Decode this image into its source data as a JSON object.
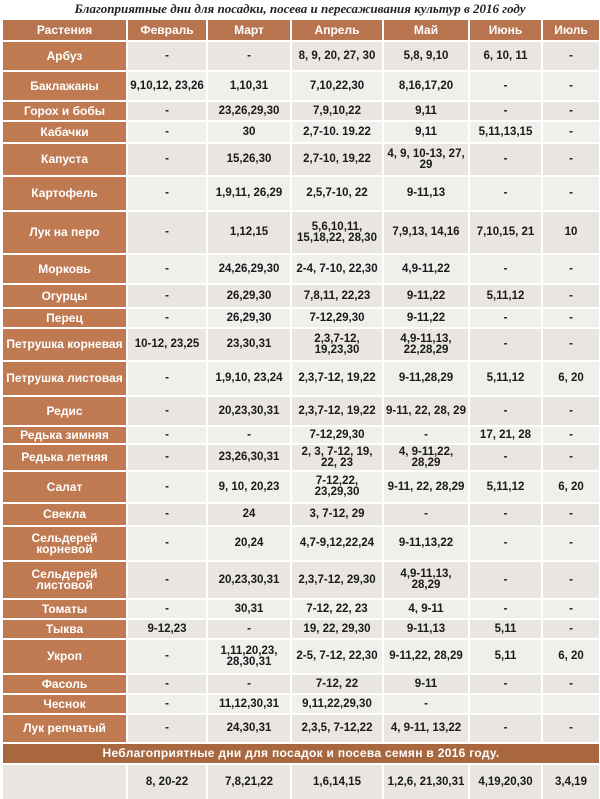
{
  "title": "Благоприятные дни для посадки, посева и пересаживания культур в 2016 году",
  "table": {
    "header": [
      "Растения",
      "Февраль",
      "Март",
      "Апрель",
      "Май",
      "Июнь",
      "Июль"
    ],
    "rows": [
      [
        "Арбуз",
        "-",
        "-",
        "8, 9, 20, 27, 30",
        "5,8, 9,10",
        "6, 10, 11",
        "-"
      ],
      [
        "Баклажаны",
        "9,10,12, 23,26",
        "1,10,31",
        "7,10,22,30",
        "8,16,17,20",
        "-",
        "-"
      ],
      [
        "Горох и бобы",
        "-",
        "23,26,29,30",
        "7,9,10,22",
        "9,11",
        "-",
        "-"
      ],
      [
        "Кабачки",
        "-",
        "30",
        "2,7-10. 19.22",
        "9,11",
        "5,11,13,15",
        "-"
      ],
      [
        "Капуста",
        "-",
        "15,26,30",
        "2,7-10, 19,22",
        "4, 9, 10-13, 27, 29",
        "-",
        "-"
      ],
      [
        "Картофель",
        "-",
        "1,9,11, 26,29",
        "2,5,7-10, 22",
        "9-11,13",
        "-",
        "-"
      ],
      [
        "Лук на перо",
        "-",
        "1,12,15",
        "5,6,10,11, 15,18,22, 28,30",
        "7,9,13, 14,16",
        "7,10,15, 21",
        "10"
      ],
      [
        "Морковь",
        "-",
        "24,26,29,30",
        "2-4, 7-10, 22,30",
        "4,9-11,22",
        "-",
        "-"
      ],
      [
        "Огурцы",
        "-",
        "26,29,30",
        "7,8,11, 22,23",
        "9-11,22",
        "5,11,12",
        "-"
      ],
      [
        "Перец",
        "-",
        "26,29,30",
        "7-12,29,30",
        "9-11,22",
        "-",
        "-"
      ],
      [
        "Петрушка корневая",
        "10-12, 23,25",
        "23,30,31",
        "2,3,7-12, 19,23,30",
        "4,9-11,13, 22,28,29",
        "-",
        "-"
      ],
      [
        "Петрушка листовая",
        "-",
        "1,9,10, 23,24",
        "2,3,7-12, 19,22",
        "9-11,28,29",
        "5,11,12",
        "6, 20"
      ],
      [
        "Редис",
        "-",
        "20,23,30,31",
        "2,3,7-12, 19,22",
        "9-11, 22, 28, 29",
        "-",
        "-"
      ],
      [
        "Редька зимняя",
        "-",
        "-",
        "7-12,29,30",
        "-",
        "17, 21, 28",
        "-"
      ],
      [
        "Редька летняя",
        "-",
        "23,26,30,31",
        "2, 3, 7-12, 19, 22, 23",
        "4, 9-11,22, 28,29",
        "-",
        "-"
      ],
      [
        "Салат",
        "-",
        "9, 10, 20,23",
        "7-12,22, 23,29,30",
        "9-11, 22, 28,29",
        "5,11,12",
        "6, 20"
      ],
      [
        "Свекла",
        "-",
        "24",
        "3, 7-12, 29",
        "-",
        "-",
        "-"
      ],
      [
        "Сельдерей корневой",
        "-",
        "20,24",
        "4,7-9,12,22,24",
        "9-11,13,22",
        "-",
        "-"
      ],
      [
        "Сельдерей листовой",
        "-",
        "20,23,30,31",
        "2,3,7-12, 29,30",
        "4,9-11,13, 28,29",
        "-",
        "-"
      ],
      [
        "Томаты",
        "-",
        "30,31",
        "7-12, 22, 23",
        "4, 9-11",
        "-",
        "-"
      ],
      [
        "Тыква",
        "9-12,23",
        "-",
        "19, 22, 29,30",
        "9-11,13",
        "5,11",
        "-"
      ],
      [
        "Укроп",
        "-",
        "1,11,20,23, 28,30,31",
        "2-5, 7-12, 22,30",
        "9-11,22, 28,29",
        "5,11",
        "6, 20"
      ],
      [
        "Фасоль",
        "-",
        "-",
        "7-12, 22",
        "9-11",
        "-",
        "-"
      ],
      [
        "Чеснок",
        "-",
        "11,12,30,31",
        "9,11,22,29,30",
        "-",
        null,
        null
      ],
      [
        "Лук репчатый",
        "-",
        "24,30,31",
        "2,3,5, 7-12,22",
        "4, 9-11, 13,22",
        "-",
        "-"
      ]
    ],
    "footer_title": "Неблагоприятные дни для посадок и посева семян в 2016 году.",
    "footer_row": [
      null,
      "8, 20-22",
      "7,8,21,22",
      "1,6,14,15",
      "1,2,6, 21,30,31",
      "4,19,20,30",
      "3,4,19"
    ]
  }
}
